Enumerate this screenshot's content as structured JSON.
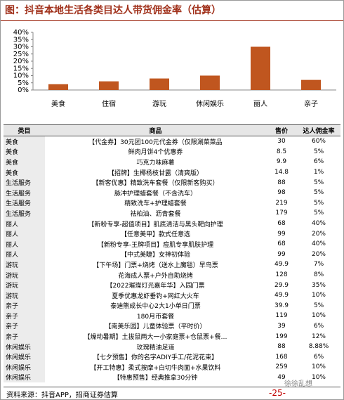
{
  "chart_data": {
    "type": "bar",
    "title": "图：抖音本地生活各类目达人带货佣金率（估算）",
    "categories": [
      "美食",
      "住宿",
      "游玩",
      "休闲娱乐",
      "丽人",
      "亲子"
    ],
    "values": [
      4,
      6,
      8,
      10,
      30,
      7
    ],
    "color": "#c0561f",
    "ylim": [
      0,
      40
    ],
    "yticks": [
      {
        "value": 0,
        "label": "0%"
      },
      {
        "value": 5,
        "label": "5%"
      },
      {
        "value": 10,
        "label": "10%"
      },
      {
        "value": 15,
        "label": "15%"
      },
      {
        "value": 20,
        "label": "20%"
      },
      {
        "value": 25,
        "label": "25%"
      },
      {
        "value": 30,
        "label": "30%"
      },
      {
        "value": 35,
        "label": "35%"
      },
      {
        "value": 40,
        "label": "40%"
      }
    ],
    "grid": false
  },
  "table": {
    "header": [
      "类目",
      "商品",
      "售价",
      "达人佣金率"
    ],
    "rows": [
      [
        "美食",
        "【代金券】30元团100元代金券（仅限涮菜菜品",
        "30",
        "60%"
      ],
      [
        "美食",
        "鲜肉月饼4个优惠券",
        "8.5",
        "5%"
      ],
      [
        "美食",
        "巧克力味麻薯",
        "9.9",
        "6%"
      ],
      [
        "美食",
        "【招牌】生椰杨枝甘露（清爽版）",
        "14.8",
        "1%"
      ],
      [
        "生活服务",
        "【新客优惠】精致洗车套餐（仅限新客购买）",
        "88",
        "5%"
      ],
      [
        "生活服务",
        "脉冲护理蜡套餐（不含洗车）",
        "98",
        "5%"
      ],
      [
        "生活服务",
        "精致洗车+护理蜡套餐",
        "219",
        "5%"
      ],
      [
        "生活服务",
        "祛柏油、沥青套餐",
        "179",
        "5%"
      ],
      [
        "丽人",
        "【新粉专享-超值项目】肌底清洁与黑头靶向护理",
        "68",
        "40%"
      ],
      [
        "丽人",
        "【任意美甲】款式任意选",
        "99",
        "20%"
      ],
      [
        "丽人",
        "【新粉专享-王牌项目】痘肌专享肌肤护理",
        "68",
        "40%"
      ],
      [
        "丽人",
        "【中式美睫】女神初体验",
        "99",
        "20%"
      ],
      [
        "游玩",
        "【下午场】门票+烧烤（送水上魔毯）早鸟票",
        "49.9",
        "7%"
      ],
      [
        "游玩",
        "花海成人票+户外自助烧烤",
        "128",
        "8%"
      ],
      [
        "游玩",
        "【2022璀璨灯光嘉年华】入园门票",
        "29.9",
        "35%"
      ],
      [
        "游玩",
        "夏季优惠龙虾垂钓+网红大火车",
        "49.9",
        "10%"
      ],
      [
        "亲子",
        "泰迪熊成长中心2大1小单日门票",
        "39.9",
        "5%"
      ],
      [
        "亲子",
        "180月币套餐",
        "119",
        "10%"
      ],
      [
        "亲子",
        "【南美乐园】儿童体验票（平时价）",
        "39",
        "6%"
      ],
      [
        "亲子",
        "【燥动暑期】土拔鼠两大一小家庭票+仓鼠票+餐…",
        "199",
        "12%"
      ],
      [
        "休闲娱乐",
        "玫瑰精油足道",
        "88",
        "8.88%"
      ],
      [
        "休闲娱乐",
        "【七夕预售】你的名字ADIY手工/花泥花束】",
        "168",
        "6%"
      ],
      [
        "休闲娱乐",
        "【开工特惠】柔式按摩+白切牛肉面+水果饮料",
        "259",
        "10%"
      ],
      [
        "休闲娱乐",
        "【特惠预售】经典推拿30分钟",
        "49",
        "10%"
      ]
    ]
  },
  "footer": {
    "source": "资料来源：抖音APP，招商证券估算",
    "page": "-25-",
    "watermark": "徐徐乱想"
  }
}
